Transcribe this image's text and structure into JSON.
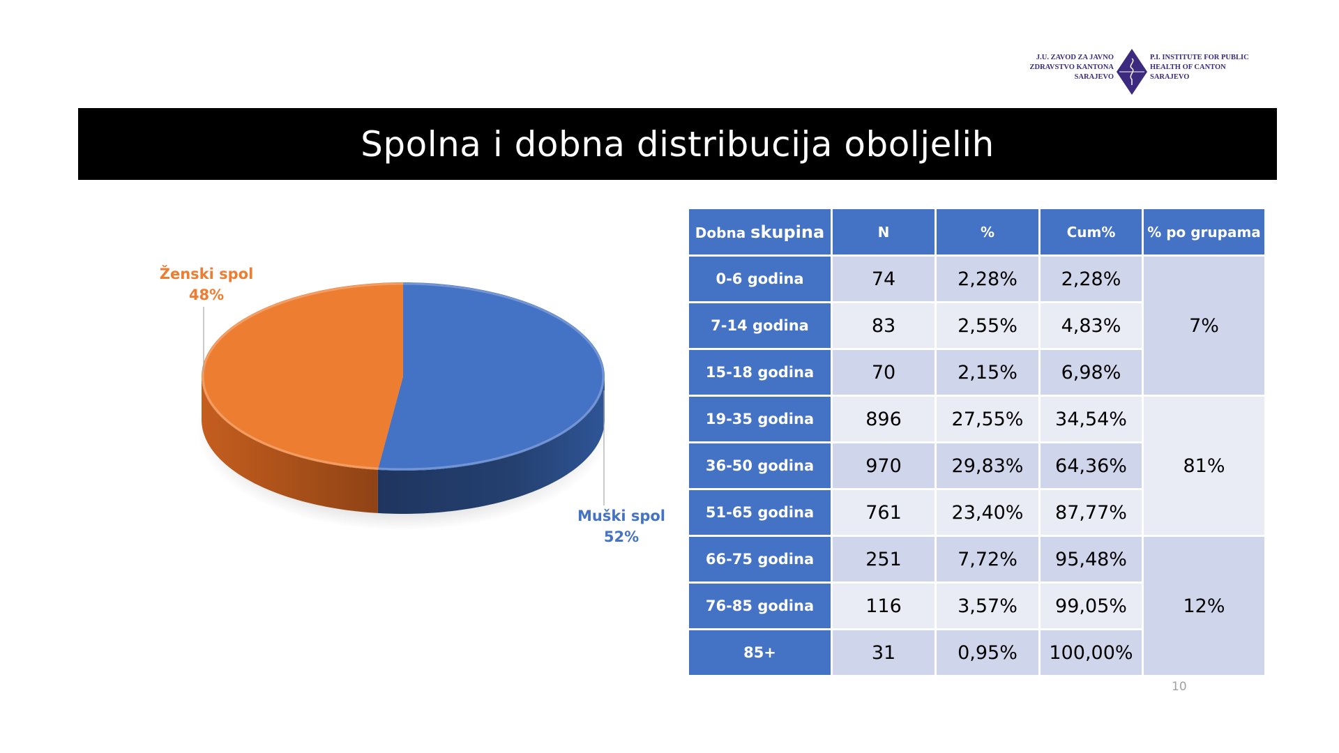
{
  "logo": {
    "left_text": [
      "J.U. ZAVOD ZA JAVNO",
      "ZDRAVSTVO KANTONA",
      "SARAJEVO"
    ],
    "right_text": [
      "P.I. INSTITUTE FOR PUBLIC",
      "HEALTH OF CANTON",
      "SARAJEVO"
    ],
    "color": "#3b2a7e"
  },
  "title": "Spolna i dobna distribucija oboljelih",
  "chart_data": {
    "type": "pie",
    "style": "3d",
    "slices": [
      {
        "name": "Muški spol",
        "value": 52,
        "label": "52%",
        "color": "#4472c4"
      },
      {
        "name": "Ženski spol",
        "value": 48,
        "label": "48%",
        "color": "#ed7d31"
      }
    ],
    "legend": "none",
    "data_labels": "outside with leader lines"
  },
  "table": {
    "headers": {
      "age_small": "Dobna",
      "age_big": "skupina",
      "n": "N",
      "pct": "%",
      "cum": "Cum%",
      "group": "% po grupama"
    },
    "rows": [
      {
        "age": "0-6 godina",
        "n": "74",
        "pct": "2,28%",
        "cum": "2,28%"
      },
      {
        "age": "7-14 godina",
        "n": "83",
        "pct": "2,55%",
        "cum": "4,83%"
      },
      {
        "age": "15-18 godina",
        "n": "70",
        "pct": "2,15%",
        "cum": "6,98%"
      },
      {
        "age": "19-35 godina",
        "n": "896",
        "pct": "27,55%",
        "cum": "34,54%"
      },
      {
        "age": "36-50 godina",
        "n": "970",
        "pct": "29,83%",
        "cum": "64,36%"
      },
      {
        "age": "51-65 godina",
        "n": "761",
        "pct": "23,40%",
        "cum": "87,77%"
      },
      {
        "age": "66-75 godina",
        "n": "251",
        "pct": "7,72%",
        "cum": "95,48%"
      },
      {
        "age": "76-85 godina",
        "n": "116",
        "pct": "3,57%",
        "cum": "99,05%"
      },
      {
        "age": "85+",
        "n": "31",
        "pct": "0,95%",
        "cum": "100,00%"
      }
    ],
    "groups": [
      "7%",
      "81%",
      "12%"
    ]
  },
  "page_number": "10"
}
